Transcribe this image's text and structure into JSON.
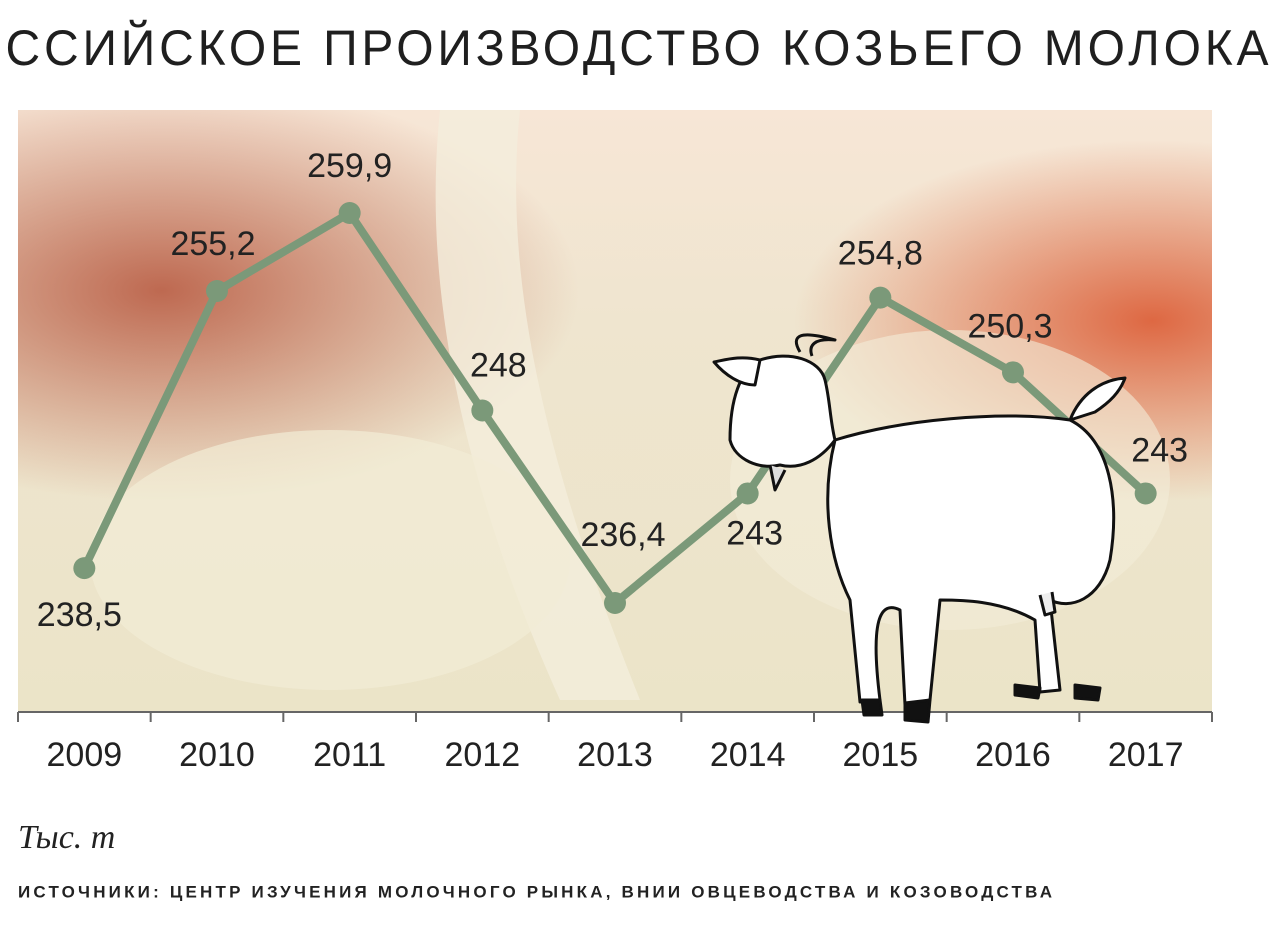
{
  "chart_data": {
    "type": "line",
    "title": "РОССИЙСКОЕ ПРОИЗВОДСТВО КОЗЬЕГО МОЛОКА",
    "categories": [
      "2009",
      "2010",
      "2011",
      "2012",
      "2013",
      "2014",
      "2015",
      "2016",
      "2017"
    ],
    "values": [
      238.5,
      255.2,
      259.9,
      248,
      236.4,
      243,
      254.8,
      250.3,
      243
    ],
    "value_labels": [
      "238,5",
      "255,2",
      "259,9",
      "248",
      "236,4",
      "243",
      "254,8",
      "250,3",
      "243"
    ],
    "color": "#7b9979",
    "unit_label": "Тыс. т",
    "source": "ИСТОЧНИКИ: ЦЕНТР ИЗУЧЕНИЯ МОЛОЧНОГО РЫНКА, ВНИИ ОВЦЕВОДСТВА И КОЗОВОДСТВА"
  }
}
